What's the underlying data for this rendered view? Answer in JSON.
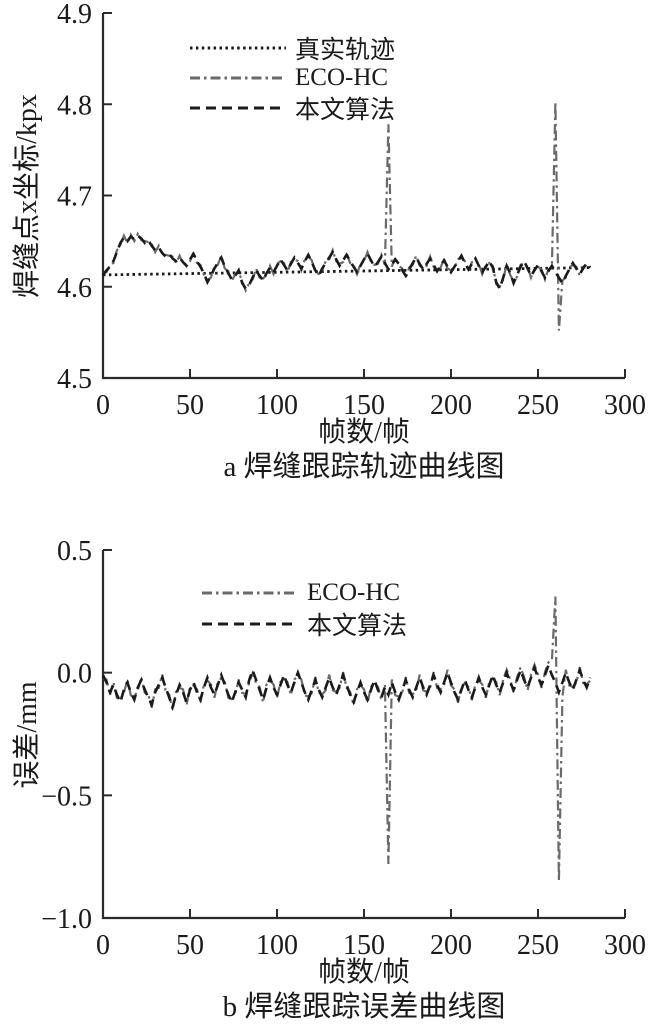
{
  "figure": {
    "background": "#ffffff",
    "axis_color": "#2b2b2b",
    "text_color": "#1a1a1a"
  },
  "chart_data": [
    {
      "id": "trajectory-chart",
      "type": "line",
      "caption": "a 焊缝跟踪轨迹曲线图",
      "xlabel": "帧数/帧",
      "ylabel": "焊缝点x坐标/kpx",
      "xlim": [
        0,
        300
      ],
      "ylim": [
        4.5,
        4.9
      ],
      "grid": false,
      "legend_position": "upper-center-inside",
      "xticks": [
        0,
        50,
        100,
        150,
        200,
        250,
        300
      ],
      "yticks": [
        {
          "v": 4.5,
          "label": "4.5"
        },
        {
          "v": 4.6,
          "label": "4.6"
        },
        {
          "v": 4.7,
          "label": "4.7"
        },
        {
          "v": 4.8,
          "label": "4.8"
        },
        {
          "v": 4.9,
          "label": "4.9"
        }
      ],
      "series": [
        {
          "name": "真实轨迹",
          "style": "dotted",
          "color": "#1a1a1a",
          "x": [
            0,
            280
          ],
          "y": [
            4.613,
            4.621
          ]
        },
        {
          "name": "ECO-HC",
          "style": "dashdot",
          "color": "#6a6a6a",
          "x0": 0,
          "dx": 2,
          "y": [
            4.615,
            4.616,
            4.624,
            4.626,
            4.64,
            4.646,
            4.656,
            4.648,
            4.657,
            4.65,
            4.658,
            4.651,
            4.65,
            4.649,
            4.647,
            4.638,
            4.645,
            4.635,
            4.635,
            4.634,
            4.633,
            4.626,
            4.634,
            4.625,
            4.625,
            4.628,
            4.638,
            4.626,
            4.624,
            4.613,
            4.607,
            4.61,
            4.622,
            4.624,
            4.634,
            4.62,
            4.617,
            4.606,
            4.614,
            4.616,
            4.606,
            4.596,
            4.604,
            4.608,
            4.62,
            4.61,
            4.609,
            4.613,
            4.623,
            4.614,
            4.625,
            4.628,
            4.626,
            4.616,
            4.627,
            4.63,
            4.628,
            4.618,
            4.63,
            4.633,
            4.629,
            4.616,
            4.614,
            4.618,
            4.628,
            4.63,
            4.64,
            4.628,
            4.625,
            4.627,
            4.637,
            4.626,
            4.624,
            4.614,
            4.625,
            4.628,
            4.638,
            4.627,
            4.624,
            4.625,
            4.635,
            4.624,
            4.778,
            4.622,
            4.632,
            4.623,
            4.62,
            4.61,
            4.621,
            4.624,
            4.634,
            4.623,
            4.621,
            4.623,
            4.633,
            4.622,
            4.619,
            4.621,
            4.631,
            4.62,
            4.618,
            4.62,
            4.63,
            4.632,
            4.628,
            4.617,
            4.627,
            4.629,
            4.625,
            4.614,
            4.624,
            4.626,
            4.623,
            4.603,
            4.6,
            4.608,
            4.625,
            4.613,
            4.606,
            4.611,
            4.624,
            4.626,
            4.622,
            4.61,
            4.62,
            4.622,
            4.619,
            4.608,
            4.619,
            4.621,
            4.803,
            4.552,
            4.607,
            4.61,
            4.621,
            4.624,
            4.622,
            4.612,
            4.622,
            4.624,
            4.623
          ]
        },
        {
          "name": "本文算法",
          "style": "dashed",
          "color": "#1a1a1a",
          "x0": 0,
          "dx": 2,
          "y": [
            4.613,
            4.618,
            4.622,
            4.628,
            4.638,
            4.648,
            4.654,
            4.65,
            4.655,
            4.652,
            4.656,
            4.653,
            4.648,
            4.651,
            4.645,
            4.64,
            4.643,
            4.637,
            4.633,
            4.636,
            4.631,
            4.628,
            4.632,
            4.627,
            4.623,
            4.63,
            4.636,
            4.628,
            4.622,
            4.615,
            4.605,
            4.612,
            4.62,
            4.626,
            4.632,
            4.622,
            4.615,
            4.608,
            4.612,
            4.618,
            4.604,
            4.598,
            4.602,
            4.61,
            4.618,
            4.612,
            4.607,
            4.615,
            4.621,
            4.616,
            4.623,
            4.63,
            4.624,
            4.618,
            4.625,
            4.632,
            4.626,
            4.62,
            4.628,
            4.635,
            4.627,
            4.618,
            4.612,
            4.62,
            4.626,
            4.632,
            4.638,
            4.63,
            4.623,
            4.629,
            4.635,
            4.628,
            4.622,
            4.616,
            4.623,
            4.63,
            4.636,
            4.629,
            4.622,
            4.627,
            4.633,
            4.626,
            4.619,
            4.624,
            4.63,
            4.625,
            4.618,
            4.612,
            4.619,
            4.626,
            4.632,
            4.625,
            4.619,
            4.625,
            4.631,
            4.624,
            4.617,
            4.623,
            4.629,
            4.622,
            4.616,
            4.622,
            4.628,
            4.634,
            4.626,
            4.619,
            4.625,
            4.631,
            4.623,
            4.616,
            4.622,
            4.628,
            4.621,
            4.605,
            4.598,
            4.61,
            4.623,
            4.615,
            4.604,
            4.613,
            4.622,
            4.628,
            4.62,
            4.612,
            4.618,
            4.624,
            4.617,
            4.61,
            4.617,
            4.623,
            4.616,
            4.61,
            4.604,
            4.612,
            4.619,
            4.626,
            4.62,
            4.614,
            4.62,
            4.626,
            4.621
          ]
        }
      ]
    },
    {
      "id": "error-chart",
      "type": "line",
      "caption": "b 焊缝跟踪误差曲线图",
      "xlabel": "帧数/帧",
      "ylabel": "误差/mm",
      "xlim": [
        0,
        300
      ],
      "ylim": [
        -1.0,
        0.5
      ],
      "grid": false,
      "legend_position": "upper-center-inside",
      "xticks": [
        0,
        50,
        100,
        150,
        200,
        250,
        300
      ],
      "yticks": [
        {
          "v": -1.0,
          "label": "−1.0"
        },
        {
          "v": -0.5,
          "label": "−0.5"
        },
        {
          "v": 0.0,
          "label": "0.0"
        },
        {
          "v": 0.5,
          "label": "0.5"
        }
      ],
      "series": [
        {
          "name": "ECO-HC",
          "style": "dashdot",
          "color": "#6a6a6a",
          "x0": 0,
          "dx": 2,
          "y": [
            -0.022,
            -0.028,
            -0.092,
            -0.038,
            -0.102,
            -0.108,
            -0.082,
            -0.028,
            -0.092,
            -0.098,
            -0.072,
            -0.018,
            -0.082,
            -0.088,
            -0.142,
            -0.068,
            -0.062,
            -0.008,
            -0.072,
            -0.088,
            -0.152,
            -0.078,
            -0.062,
            -0.068,
            -0.132,
            -0.058,
            -0.052,
            -0.068,
            -0.122,
            -0.048,
            -0.032,
            -0.048,
            -0.102,
            -0.038,
            -0.022,
            -0.038,
            -0.102,
            -0.108,
            -0.092,
            -0.028,
            -0.082,
            -0.088,
            -0.042,
            -0.002,
            -0.042,
            -0.058,
            -0.122,
            -0.048,
            -0.032,
            -0.048,
            -0.102,
            -0.038,
            -0.022,
            -0.038,
            -0.092,
            -0.028,
            -0.012,
            -0.028,
            -0.092,
            -0.098,
            -0.082,
            -0.018,
            -0.082,
            -0.088,
            -0.072,
            -0.008,
            -0.072,
            -0.078,
            -0.062,
            0.002,
            -0.062,
            -0.078,
            -0.132,
            -0.068,
            -0.052,
            -0.068,
            -0.122,
            -0.058,
            -0.042,
            -0.058,
            -0.112,
            -0.048,
            -0.78,
            -0.028,
            -0.092,
            -0.098,
            -0.082,
            -0.018,
            -0.082,
            -0.088,
            -0.072,
            -0.008,
            -0.072,
            -0.078,
            -0.062,
            0.002,
            -0.062,
            -0.068,
            -0.052,
            0.012,
            -0.052,
            -0.068,
            -0.122,
            -0.058,
            -0.042,
            -0.058,
            -0.112,
            -0.048,
            -0.032,
            -0.048,
            -0.102,
            -0.038,
            -0.022,
            -0.038,
            -0.092,
            -0.028,
            0.012,
            -0.028,
            -0.082,
            -0.018,
            0.022,
            -0.018,
            -0.072,
            -0.008,
            0.032,
            -0.008,
            -0.062,
            0.002,
            0.042,
            0.05,
            0.31,
            -0.85,
            -0.1,
            0.012,
            -0.052,
            -0.058,
            -0.042,
            0.022,
            -0.042,
            -0.048,
            -0.032
          ]
        },
        {
          "name": "本文算法",
          "style": "dashed",
          "color": "#1a1a1a",
          "x0": 0,
          "dx": 2,
          "y": [
            -0.01,
            -0.04,
            -0.08,
            -0.05,
            -0.09,
            -0.12,
            -0.07,
            -0.04,
            -0.08,
            -0.11,
            -0.06,
            -0.03,
            -0.07,
            -0.1,
            -0.13,
            -0.08,
            -0.05,
            -0.02,
            -0.06,
            -0.1,
            -0.14,
            -0.09,
            -0.05,
            -0.08,
            -0.12,
            -0.07,
            -0.04,
            -0.08,
            -0.11,
            -0.06,
            -0.02,
            -0.06,
            -0.09,
            -0.05,
            -0.01,
            -0.05,
            -0.09,
            -0.12,
            -0.08,
            -0.04,
            -0.07,
            -0.1,
            -0.03,
            0.01,
            -0.03,
            -0.07,
            -0.11,
            -0.06,
            -0.02,
            -0.06,
            -0.09,
            -0.05,
            -0.01,
            -0.05,
            -0.08,
            -0.04,
            0.0,
            -0.04,
            -0.08,
            -0.11,
            -0.07,
            -0.03,
            -0.07,
            -0.1,
            -0.06,
            -0.02,
            -0.06,
            -0.09,
            -0.05,
            -0.01,
            -0.05,
            -0.09,
            -0.12,
            -0.08,
            -0.04,
            -0.08,
            -0.11,
            -0.07,
            -0.03,
            -0.07,
            -0.1,
            -0.06,
            -0.09,
            -0.04,
            -0.08,
            -0.11,
            -0.07,
            -0.03,
            -0.07,
            -0.1,
            -0.06,
            -0.02,
            -0.06,
            -0.09,
            -0.05,
            -0.01,
            -0.05,
            -0.08,
            -0.04,
            0.0,
            -0.04,
            -0.08,
            -0.11,
            -0.07,
            -0.03,
            -0.07,
            -0.1,
            -0.06,
            -0.02,
            -0.06,
            -0.09,
            -0.05,
            -0.01,
            -0.05,
            -0.08,
            -0.04,
            0.0,
            -0.04,
            -0.07,
            -0.03,
            0.01,
            -0.03,
            -0.06,
            -0.02,
            0.02,
            -0.02,
            -0.05,
            -0.01,
            0.03,
            -0.01,
            -0.04,
            -0.08,
            -0.04,
            0.0,
            -0.04,
            -0.07,
            -0.03,
            0.01,
            -0.03,
            -0.06,
            -0.02
          ]
        }
      ]
    }
  ]
}
